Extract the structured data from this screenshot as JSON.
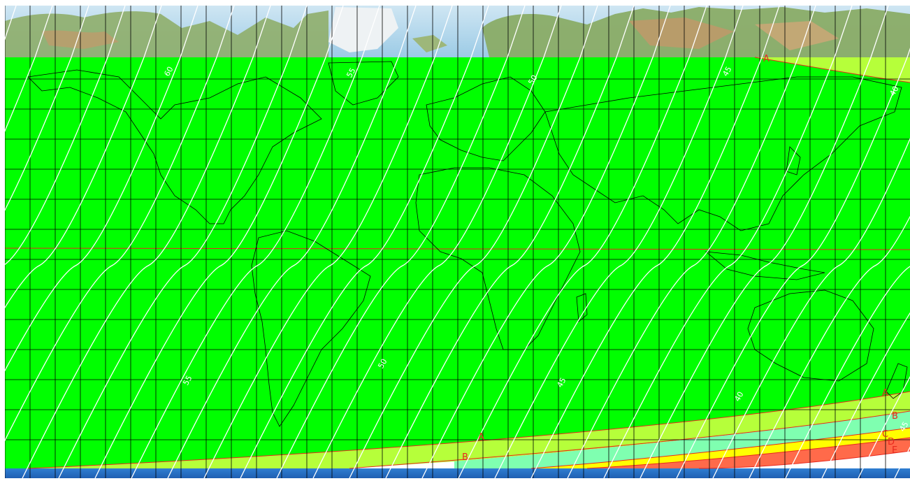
{
  "map": {
    "projection": "equirectangular",
    "background": "topographic relief",
    "grid": {
      "lon_step_deg": 10,
      "lat_step_deg": 10
    },
    "colors": {
      "main_zone": "#00ff00",
      "zone_a_b": "#b6ff3a",
      "zone_b_c": "#7fffb0",
      "zone_c_d": "#ffff00",
      "zone_d_e": "#ff6a4a",
      "gridline": "#000000",
      "boundary_line": "#e8281e",
      "contour_line": "#ffffff",
      "coast_line": "#000000"
    }
  },
  "contour_labels": [
    {
      "text": "60"
    },
    {
      "text": "55"
    },
    {
      "text": "50"
    },
    {
      "text": "45"
    },
    {
      "text": "40"
    },
    {
      "text": "55"
    },
    {
      "text": "50"
    },
    {
      "text": "45"
    },
    {
      "text": "40"
    },
    {
      "text": "45"
    }
  ],
  "zone_labels": [
    {
      "text": "A"
    },
    {
      "text": "A"
    },
    {
      "text": "A"
    },
    {
      "text": "B"
    },
    {
      "text": "B"
    },
    {
      "text": "C"
    },
    {
      "text": "D"
    },
    {
      "text": "E"
    }
  ]
}
